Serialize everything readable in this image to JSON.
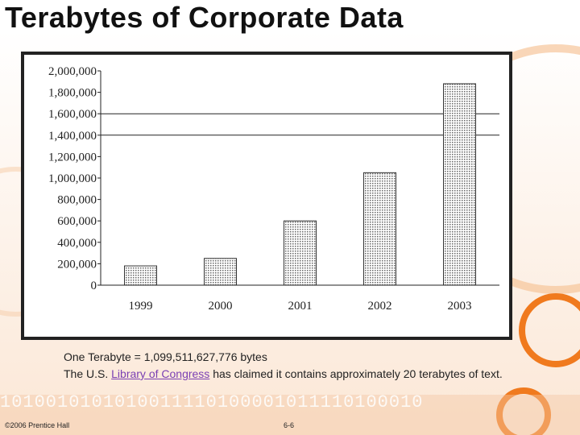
{
  "slide": {
    "title": "Terabytes of Corporate Data",
    "caption_line1": "One Terabyte = 1,099,511,627,776 bytes",
    "caption_line2_before": "The U.S. ",
    "caption_link": "Library of Congress",
    "caption_line2_after": " has claimed it contains approximately 20 terabytes of text.",
    "footer_left": "©2006 Prentice Hall",
    "footer_center": "6-6",
    "binary_strip": "1010010101010011110100001011110100010",
    "accent_color": "#f07a1e",
    "link_color": "#7a3fb3"
  },
  "chart_data": {
    "type": "bar",
    "title": "",
    "xlabel": "",
    "ylabel": "",
    "categories": [
      "1999",
      "2000",
      "2001",
      "2002",
      "2003"
    ],
    "values": [
      180000,
      250000,
      600000,
      1050000,
      1880000
    ],
    "ylim": [
      0,
      2000000
    ],
    "yticks": [
      "0",
      "200,000",
      "400,000",
      "600,000",
      "800,000",
      "1,000,000",
      "1,200,000",
      "1,400,000",
      "1,600,000",
      "1,800,000",
      "2,000,000"
    ],
    "gridlines_at": [
      1400000,
      1600000
    ],
    "bar_fill": "dotted gray"
  }
}
